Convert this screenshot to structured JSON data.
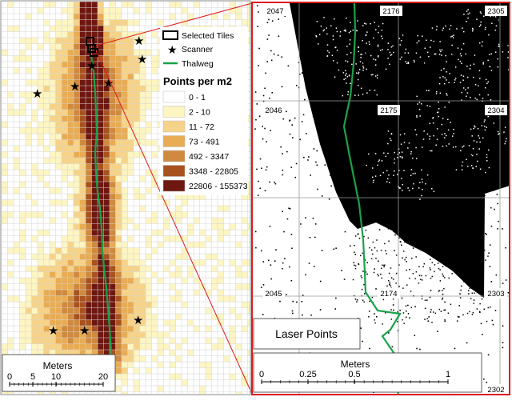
{
  "left_panel": {
    "legend": {
      "selected_tiles_label": "Selected Tiles",
      "scanner_label": "Scanner",
      "thalweg_label": "Thalweg",
      "density_title": "Points per m2",
      "classes": [
        {
          "label": "0 - 1",
          "color": "#ffffff"
        },
        {
          "label": "2 - 10",
          "color": "#fdf5c2"
        },
        {
          "label": "11 - 72",
          "color": "#f6d38a"
        },
        {
          "label": "73 - 491",
          "color": "#e8ac55"
        },
        {
          "label": "492 - 3347",
          "color": "#cf8a3f"
        },
        {
          "label": "3348 - 22805",
          "color": "#a8521f"
        },
        {
          "label": "22806 - 155373",
          "color": "#6e1710"
        }
      ]
    },
    "scale_bar": {
      "title": "Meters",
      "ticks": [
        "0",
        "5",
        "10",
        "20"
      ]
    }
  },
  "right_panel": {
    "tile_labels": [
      "2047",
      "2176",
      "2305",
      "2046",
      "2175",
      "2304",
      "2045",
      "2174",
      "2303",
      "2302"
    ],
    "laser_label": "Laser Points",
    "scale_bar": {
      "title": "Meters",
      "ticks": [
        "0",
        "0.25",
        "0.5",
        "1"
      ]
    }
  },
  "colors": {
    "thalweg": "#1aa34a",
    "inset_frame": "#e01a1a",
    "tile_grid": "#d4d4d4"
  }
}
